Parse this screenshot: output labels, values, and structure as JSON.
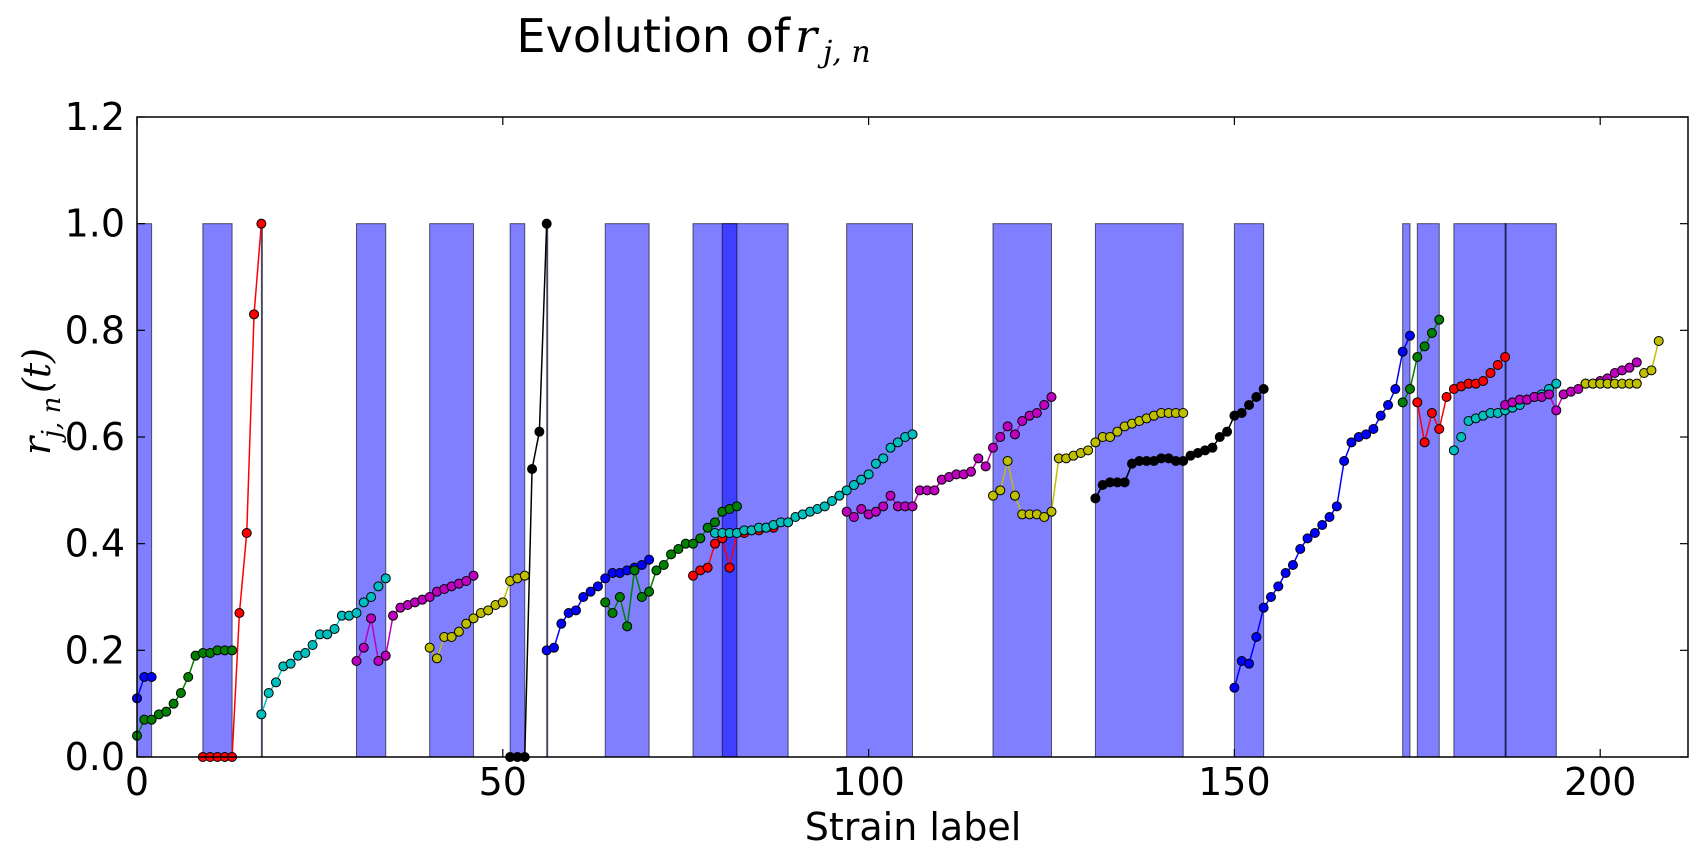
{
  "chart_data": {
    "type": "scatter",
    "title": "Evolution of ",
    "title_math": "r",
    "title_math_sub": "j, n",
    "xlabel": "Strain label",
    "ylabel_math": "r",
    "ylabel_math_sub": "j, n",
    "ylabel_suffix": "(t)",
    "xlim": [
      0,
      212
    ],
    "ylim": [
      0,
      1.2
    ],
    "x_ticks": [
      "0",
      "50",
      "100",
      "150",
      "200"
    ],
    "y_ticks": [
      "0.0",
      "0.2",
      "0.4",
      "0.6",
      "0.8",
      "1.0",
      "1.2"
    ],
    "x_tick_values": [
      0,
      50,
      100,
      150,
      200
    ],
    "y_tick_values": [
      0,
      0.2,
      0.4,
      0.6,
      0.8,
      1.0,
      1.2
    ],
    "grid": false,
    "spans": [
      {
        "x0": 0,
        "x1": 2,
        "height": 1.0
      },
      {
        "x0": 9,
        "x1": 13,
        "height": 1.0
      },
      {
        "x0": 17,
        "x1": 17.1,
        "height": 1.0
      },
      {
        "x0": 30,
        "x1": 34,
        "height": 1.0
      },
      {
        "x0": 40,
        "x1": 46,
        "height": 1.0
      },
      {
        "x0": 51,
        "x1": 53,
        "height": 1.0
      },
      {
        "x0": 56,
        "x1": 56.1,
        "height": 1.0
      },
      {
        "x0": 64,
        "x1": 70,
        "height": 1.0
      },
      {
        "x0": 76,
        "x1": 89,
        "height": 1.0
      },
      {
        "x0": 80,
        "x1": 82,
        "height": 1.0
      },
      {
        "x0": 97,
        "x1": 106,
        "height": 1.0
      },
      {
        "x0": 117,
        "x1": 125,
        "height": 1.0
      },
      {
        "x0": 131,
        "x1": 143,
        "height": 1.0
      },
      {
        "x0": 150,
        "x1": 154,
        "height": 1.0
      },
      {
        "x0": 173,
        "x1": 174,
        "height": 1.0
      },
      {
        "x0": 175,
        "x1": 178,
        "height": 1.0
      },
      {
        "x0": 180,
        "x1": 194,
        "height": 1.0
      },
      {
        "x0": 187,
        "x1": 187.1,
        "height": 1.0
      }
    ],
    "series": [
      {
        "color": "#0000ff",
        "x": [
          0,
          1,
          2
        ],
        "y": [
          0.11,
          0.15,
          0.15
        ]
      },
      {
        "color": "#008000",
        "x": [
          0,
          1,
          2,
          3,
          4,
          5,
          6,
          7,
          8,
          9,
          10,
          11,
          12,
          13
        ],
        "y": [
          0.04,
          0.07,
          0.07,
          0.08,
          0.085,
          0.1,
          0.12,
          0.15,
          0.19,
          0.195,
          0.195,
          0.2,
          0.2,
          0.2
        ]
      },
      {
        "color": "#ff0000",
        "x": [
          9,
          10,
          11,
          12,
          13,
          14,
          15,
          16,
          17
        ],
        "y": [
          0,
          0,
          0,
          0,
          0,
          0.27,
          0.42,
          0.83,
          1.0
        ]
      },
      {
        "color": "#00bfbf",
        "x": [
          17,
          18,
          19,
          20,
          21,
          22,
          23,
          24,
          25,
          26,
          27,
          28,
          29,
          30,
          31,
          32,
          33,
          34
        ],
        "y": [
          0.08,
          0.12,
          0.14,
          0.17,
          0.175,
          0.19,
          0.195,
          0.21,
          0.23,
          0.23,
          0.24,
          0.265,
          0.265,
          0.27,
          0.29,
          0.3,
          0.32,
          0.335
        ]
      },
      {
        "color": "#bf00bf",
        "x": [
          30,
          31,
          32,
          33,
          34,
          35,
          36,
          37,
          38,
          39,
          40,
          41,
          42,
          43,
          44,
          45,
          46
        ],
        "y": [
          0.18,
          0.205,
          0.26,
          0.18,
          0.19,
          0.265,
          0.28,
          0.285,
          0.29,
          0.295,
          0.3,
          0.31,
          0.315,
          0.32,
          0.325,
          0.33,
          0.34
        ]
      },
      {
        "color": "#bfbf00",
        "x": [
          40,
          41,
          42,
          43,
          44,
          45,
          46,
          47,
          48,
          49,
          50,
          51,
          52,
          53
        ],
        "y": [
          0.205,
          0.185,
          0.225,
          0.225,
          0.235,
          0.25,
          0.26,
          0.27,
          0.275,
          0.285,
          0.29,
          0.33,
          0.335,
          0.34
        ]
      },
      {
        "color": "#000000",
        "x": [
          51,
          52,
          53,
          54,
          55,
          56
        ],
        "y": [
          0,
          0,
          0,
          0.54,
          0.61,
          1.0
        ]
      },
      {
        "color": "#0000ff",
        "x": [
          56,
          57,
          58,
          59,
          60,
          61,
          62,
          63,
          64,
          65,
          66,
          67,
          68,
          69,
          70
        ],
        "y": [
          0.2,
          0.205,
          0.25,
          0.27,
          0.275,
          0.3,
          0.31,
          0.32,
          0.335,
          0.345,
          0.345,
          0.35,
          0.355,
          0.36,
          0.37
        ]
      },
      {
        "color": "#008000",
        "x": [
          64,
          65,
          66,
          67,
          68,
          69,
          70,
          71,
          72,
          73,
          74,
          75,
          76,
          77,
          78,
          79,
          80,
          81,
          82
        ],
        "y": [
          0.29,
          0.27,
          0.3,
          0.245,
          0.35,
          0.3,
          0.31,
          0.35,
          0.36,
          0.38,
          0.39,
          0.4,
          0.4,
          0.41,
          0.43,
          0.44,
          0.46,
          0.465,
          0.47
        ]
      },
      {
        "color": "#ff0000",
        "x": [
          76,
          77,
          78,
          79,
          80,
          81,
          82,
          83,
          84,
          85,
          86,
          87
        ],
        "y": [
          0.34,
          0.35,
          0.355,
          0.4,
          0.41,
          0.355,
          0.42,
          0.42,
          0.425,
          0.425,
          0.43,
          0.43
        ]
      },
      {
        "color": "#00bfbf",
        "x": [
          79,
          80,
          81,
          82,
          83,
          84,
          85,
          86,
          87,
          88,
          89,
          90,
          91,
          92,
          93,
          94,
          95,
          96,
          97,
          98,
          99,
          100,
          101,
          102,
          103,
          104,
          105,
          106
        ],
        "y": [
          0.42,
          0.42,
          0.42,
          0.42,
          0.425,
          0.425,
          0.43,
          0.43,
          0.435,
          0.44,
          0.44,
          0.45,
          0.455,
          0.46,
          0.465,
          0.47,
          0.48,
          0.49,
          0.5,
          0.51,
          0.52,
          0.53,
          0.55,
          0.56,
          0.58,
          0.59,
          0.6,
          0.605
        ]
      },
      {
        "color": "#bf00bf",
        "x": [
          97,
          98,
          99,
          100,
          101,
          102,
          103,
          104,
          105,
          106,
          107,
          108,
          109,
          110,
          111,
          112,
          113,
          114,
          115,
          116,
          117,
          118,
          119,
          120,
          121,
          122,
          123,
          124,
          125
        ],
        "y": [
          0.46,
          0.45,
          0.465,
          0.455,
          0.46,
          0.47,
          0.49,
          0.47,
          0.47,
          0.47,
          0.5,
          0.5,
          0.5,
          0.52,
          0.525,
          0.53,
          0.53,
          0.535,
          0.56,
          0.545,
          0.58,
          0.6,
          0.62,
          0.605,
          0.63,
          0.64,
          0.645,
          0.66,
          0.675
        ]
      },
      {
        "color": "#bfbf00",
        "x": [
          117,
          118,
          119,
          120,
          121,
          122,
          123,
          124,
          125,
          126,
          127,
          128,
          129,
          130,
          131,
          132,
          133,
          134,
          135,
          136,
          137,
          138,
          139,
          140,
          141,
          142,
          143
        ],
        "y": [
          0.49,
          0.5,
          0.555,
          0.49,
          0.455,
          0.455,
          0.455,
          0.45,
          0.46,
          0.56,
          0.56,
          0.565,
          0.57,
          0.575,
          0.59,
          0.6,
          0.6,
          0.61,
          0.62,
          0.625,
          0.63,
          0.635,
          0.64,
          0.645,
          0.645,
          0.645,
          0.645
        ]
      },
      {
        "color": "#000000",
        "x": [
          131,
          132,
          133,
          134,
          135,
          136,
          137,
          138,
          139,
          140,
          141,
          142,
          143,
          144,
          145,
          146,
          147,
          148,
          149,
          150,
          151,
          152,
          153,
          154
        ],
        "y": [
          0.485,
          0.51,
          0.515,
          0.515,
          0.515,
          0.55,
          0.555,
          0.555,
          0.555,
          0.56,
          0.56,
          0.555,
          0.555,
          0.565,
          0.57,
          0.575,
          0.58,
          0.6,
          0.61,
          0.64,
          0.645,
          0.66,
          0.675,
          0.69
        ]
      },
      {
        "color": "#0000ff",
        "x": [
          150,
          151,
          152,
          153,
          154,
          155,
          156,
          157,
          158,
          159,
          160,
          161,
          162,
          163,
          164,
          165,
          166,
          167,
          168,
          169,
          170,
          171,
          172,
          173,
          174
        ],
        "y": [
          0.13,
          0.18,
          0.175,
          0.225,
          0.28,
          0.3,
          0.32,
          0.345,
          0.36,
          0.39,
          0.41,
          0.42,
          0.435,
          0.45,
          0.47,
          0.555,
          0.59,
          0.6,
          0.605,
          0.615,
          0.64,
          0.66,
          0.69,
          0.76,
          0.79
        ]
      },
      {
        "color": "#008000",
        "x": [
          173,
          174,
          175,
          176,
          177,
          178
        ],
        "y": [
          0.665,
          0.69,
          0.75,
          0.77,
          0.795,
          0.82
        ]
      },
      {
        "color": "#ff0000",
        "x": [
          175,
          176,
          177,
          178,
          179,
          180,
          181,
          182,
          183,
          184,
          185,
          186,
          187
        ],
        "y": [
          0.665,
          0.59,
          0.645,
          0.615,
          0.675,
          0.69,
          0.695,
          0.7,
          0.7,
          0.705,
          0.72,
          0.735,
          0.75
        ]
      },
      {
        "color": "#00bfbf",
        "x": [
          180,
          181,
          182,
          183,
          184,
          185,
          186,
          187,
          188,
          189,
          190,
          191,
          192,
          193,
          194
        ],
        "y": [
          0.575,
          0.6,
          0.63,
          0.635,
          0.64,
          0.645,
          0.645,
          0.65,
          0.655,
          0.66,
          0.67,
          0.675,
          0.68,
          0.69,
          0.7
        ]
      },
      {
        "color": "#bf00bf",
        "x": [
          187,
          188,
          189,
          190,
          191,
          192,
          193,
          194,
          195,
          196,
          197,
          198,
          199,
          200,
          201,
          202,
          203,
          204,
          205
        ],
        "y": [
          0.66,
          0.665,
          0.67,
          0.67,
          0.675,
          0.675,
          0.68,
          0.65,
          0.68,
          0.685,
          0.69,
          0.7,
          0.7,
          0.705,
          0.71,
          0.72,
          0.725,
          0.73,
          0.74
        ]
      },
      {
        "color": "#bfbf00",
        "x": [
          198,
          199,
          200,
          201,
          202,
          203,
          204,
          205,
          206,
          207,
          208
        ],
        "y": [
          0.7,
          0.7,
          0.7,
          0.7,
          0.7,
          0.7,
          0.7,
          0.7,
          0.72,
          0.725,
          0.78
        ]
      }
    ]
  }
}
